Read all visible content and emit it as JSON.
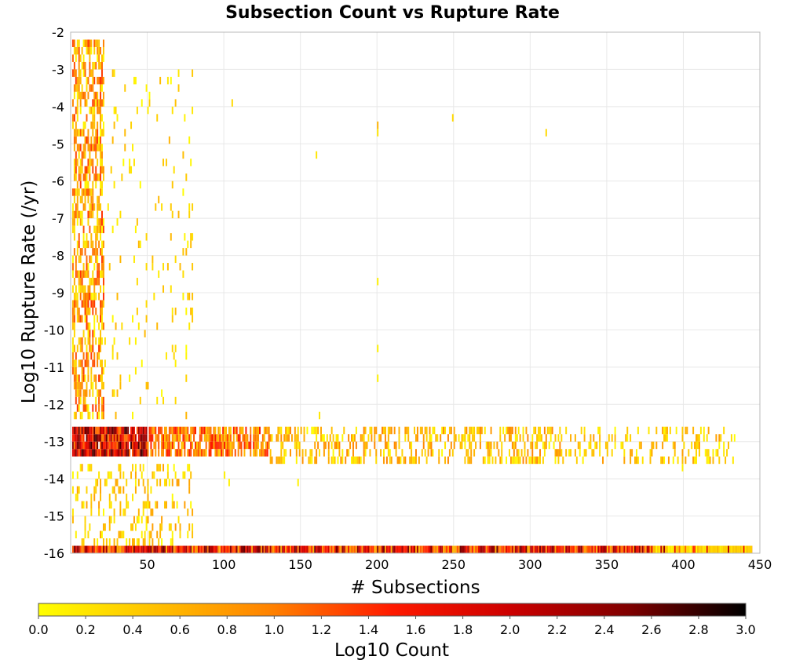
{
  "chart_data": {
    "type": "heatmap",
    "title": "Subsection Count vs Rupture Rate",
    "xlabel": "# Subsections",
    "ylabel": "Log10 Rupture Rate (/yr)",
    "xlim": [
      0,
      450
    ],
    "ylim": [
      -16,
      -2
    ],
    "x_ticks": [
      50,
      100,
      150,
      200,
      250,
      300,
      350,
      400,
      450
    ],
    "y_ticks": [
      -2,
      -3,
      -4,
      -5,
      -6,
      -7,
      -8,
      -9,
      -10,
      -11,
      -12,
      -13,
      -14,
      -15,
      -16
    ],
    "grid": true,
    "colorbar": {
      "label": "Log10 Count",
      "range": [
        0.0,
        3.0
      ],
      "ticks": [
        "0.0",
        "0.2",
        "0.4",
        "0.6",
        "0.8",
        "1.0",
        "1.2",
        "1.4",
        "1.6",
        "1.8",
        "2.0",
        "2.2",
        "2.4",
        "2.6",
        "2.8",
        "3.0"
      ],
      "colors": [
        "#ffff00",
        "#ffc000",
        "#ff8000",
        "#ff1a00",
        "#cc0000",
        "#800000",
        "#000000"
      ]
    },
    "cell_size": {
      "x": 1.0,
      "y": 0.2
    },
    "clusters": [
      {
        "name": "floor-row",
        "x_range": [
          1,
          445
        ],
        "y_range": [
          -16.0,
          -15.8
        ],
        "density": 1.0,
        "value_range": [
          0.6,
          2.6
        ]
      },
      {
        "name": "floor-row-tail",
        "x_range": [
          380,
          445
        ],
        "y_range": [
          -16.0,
          -15.8
        ],
        "density": 0.9,
        "value_range": [
          0.0,
          0.6
        ]
      },
      {
        "name": "band-core",
        "x_range": [
          1,
          50
        ],
        "y_range": [
          -13.4,
          -12.6
        ],
        "density": 0.95,
        "value_range": [
          1.0,
          2.8
        ]
      },
      {
        "name": "band-mid",
        "x_range": [
          50,
          130
        ],
        "y_range": [
          -13.4,
          -12.6
        ],
        "density": 0.75,
        "value_range": [
          0.4,
          1.6
        ]
      },
      {
        "name": "band-sparse",
        "x_range": [
          130,
          320
        ],
        "y_range": [
          -13.6,
          -12.6
        ],
        "density": 0.4,
        "value_range": [
          0.0,
          1.0
        ]
      },
      {
        "name": "band-tail",
        "x_range": [
          320,
          435
        ],
        "y_range": [
          -13.6,
          -12.6
        ],
        "density": 0.22,
        "value_range": [
          0.0,
          0.8
        ]
      },
      {
        "name": "upper-left",
        "x_range": [
          1,
          22
        ],
        "y_range": [
          -12.4,
          -2.2
        ],
        "density": 0.55,
        "value_range": [
          0.0,
          1.4
        ]
      },
      {
        "name": "upper-left-wide",
        "x_range": [
          22,
          80
        ],
        "y_range": [
          -12.4,
          -3.0
        ],
        "density": 0.05,
        "value_range": [
          0.0,
          0.6
        ]
      },
      {
        "name": "lower-left",
        "x_range": [
          1,
          80
        ],
        "y_range": [
          -15.8,
          -13.6
        ],
        "density": 0.22,
        "value_range": [
          0.0,
          0.8
        ]
      }
    ],
    "isolated_points": [
      {
        "x": 105,
        "y": -4.0,
        "v": 0.3
      },
      {
        "x": 160,
        "y": -5.4,
        "v": 0.2
      },
      {
        "x": 200,
        "y": -4.6,
        "v": 0.6
      },
      {
        "x": 200,
        "y": -4.8,
        "v": 0.2
      },
      {
        "x": 249,
        "y": -4.4,
        "v": 0.3
      },
      {
        "x": 310,
        "y": -4.8,
        "v": 0.3
      },
      {
        "x": 200,
        "y": -8.8,
        "v": 0.1
      },
      {
        "x": 200,
        "y": -10.6,
        "v": 0.1
      },
      {
        "x": 200,
        "y": -11.4,
        "v": 0.1
      },
      {
        "x": 162,
        "y": -12.4,
        "v": 0.2
      },
      {
        "x": 100,
        "y": -14.0,
        "v": 0.1
      },
      {
        "x": 103,
        "y": -14.2,
        "v": 0.1
      },
      {
        "x": 148,
        "y": -14.2,
        "v": 0.1
      },
      {
        "x": 399,
        "y": -13.8,
        "v": 0.1
      },
      {
        "x": 68,
        "y": -11.0,
        "v": 0.1
      },
      {
        "x": 68,
        "y": -12.0,
        "v": 0.3
      },
      {
        "x": 56,
        "y": -12.0,
        "v": 0.2
      }
    ]
  }
}
